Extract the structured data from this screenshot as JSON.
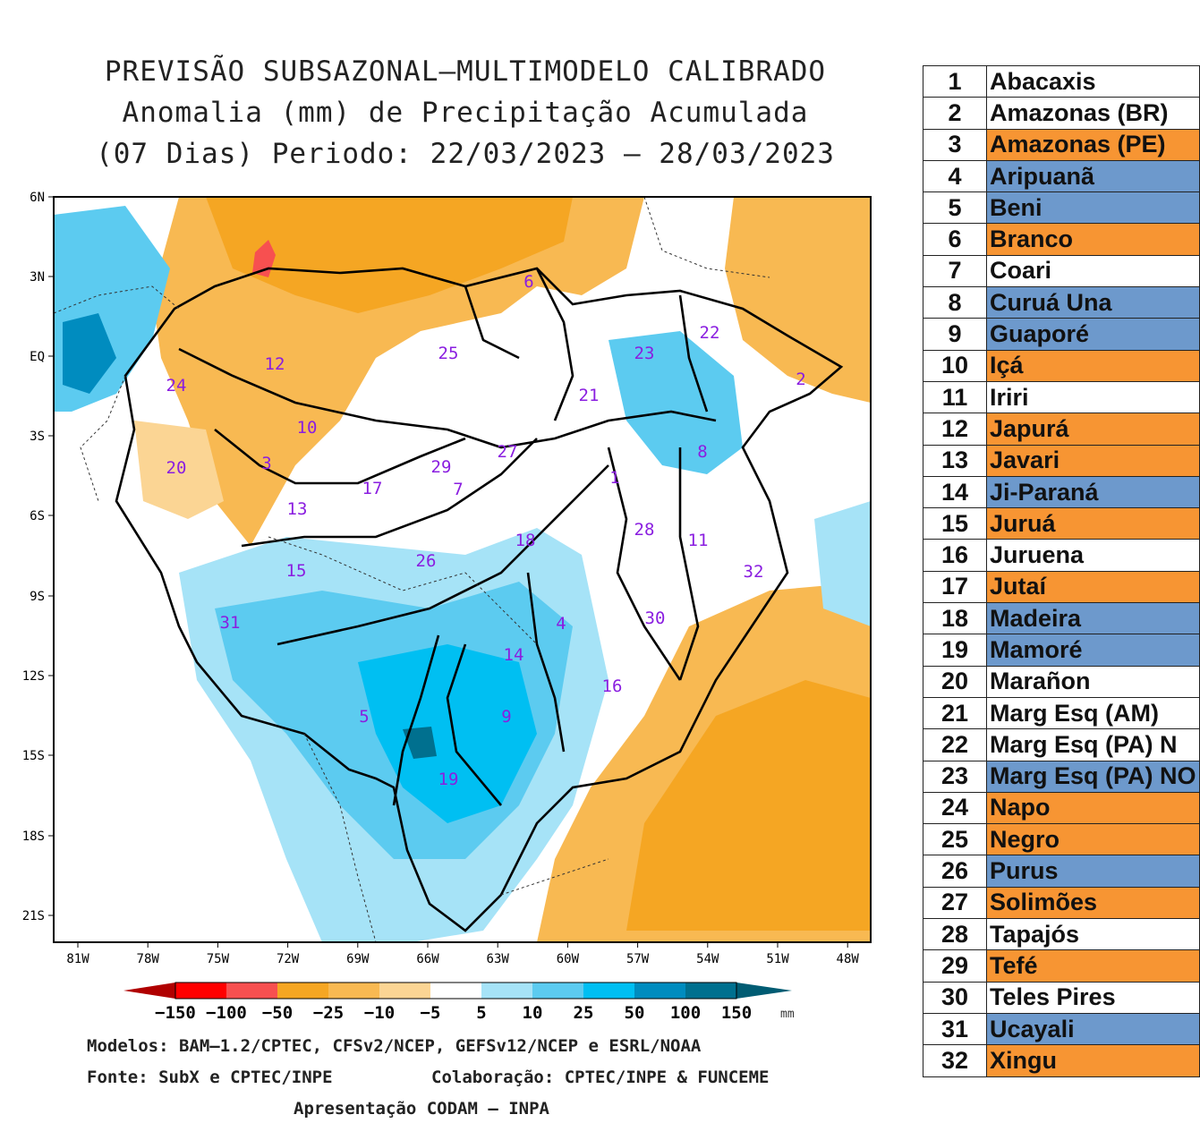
{
  "title": {
    "line1": "PREVISÃO SUBSAZONAL—MULTIMODELO CALIBRADO",
    "line2": "Anomalia (mm) de Precipitação Acumulada",
    "line3": "(07 Dias) Periodo: 22/03/2023 — 28/03/2023"
  },
  "colors": {
    "dry_strong": "#d10000",
    "dry_red": "#ff2020",
    "dry_light_red": "#f75050",
    "orange": "#f5a623",
    "light_orange": "#f8b952",
    "pale_orange": "#fbd594",
    "white": "#ffffff",
    "pale_blue": "#a6e3f7",
    "light_blue": "#5ccbf0",
    "blue": "#00bff2",
    "mid_blue": "#008cbf",
    "dark_blue": "#00708f",
    "deep_blue": "#005c73",
    "table_orange": "#f79533",
    "table_blue": "#6d99cc"
  },
  "map": {
    "lat_labels": [
      "6N",
      "3N",
      "EQ",
      "3S",
      "6S",
      "9S",
      "12S",
      "15S",
      "18S",
      "21S"
    ],
    "lon_labels": [
      "81W",
      "78W",
      "75W",
      "72W",
      "69W",
      "66W",
      "63W",
      "60W",
      "57W",
      "54W",
      "51W",
      "48W"
    ],
    "basin_numbers": [
      {
        "n": "1"
      },
      {
        "n": "2"
      },
      {
        "n": "3"
      },
      {
        "n": "4"
      },
      {
        "n": "5"
      },
      {
        "n": "6"
      },
      {
        "n": "7"
      },
      {
        "n": "8"
      },
      {
        "n": "9"
      },
      {
        "n": "10"
      },
      {
        "n": "11"
      },
      {
        "n": "12"
      },
      {
        "n": "13"
      },
      {
        "n": "14"
      },
      {
        "n": "15"
      },
      {
        "n": "16"
      },
      {
        "n": "17"
      },
      {
        "n": "18"
      },
      {
        "n": "19"
      },
      {
        "n": "20"
      },
      {
        "n": "21"
      },
      {
        "n": "22"
      },
      {
        "n": "23"
      },
      {
        "n": "24"
      },
      {
        "n": "25"
      },
      {
        "n": "26"
      },
      {
        "n": "27"
      },
      {
        "n": "28"
      },
      {
        "n": "29"
      },
      {
        "n": "30"
      },
      {
        "n": "31"
      },
      {
        "n": "32"
      }
    ]
  },
  "colorbar": {
    "labels": [
      "−150",
      "−100",
      "−50",
      "−25",
      "−10",
      "−5",
      "5",
      "10",
      "25",
      "50",
      "100",
      "150"
    ],
    "unit": "mm"
  },
  "footer": {
    "models": "Modelos: BAM—1.2/CPTEC, CFSv2/NCEP, GEFSv12/NCEP e ESRL/NOAA",
    "source": "Fonte: SubX e CPTEC/INPE",
    "collab": "Colaboração: CPTEC/INPE & FUNCEME",
    "presentation": "Apresentação CODAM — INPA"
  },
  "table": [
    {
      "n": "1",
      "name": "Abacaxis",
      "cat": "white"
    },
    {
      "n": "2",
      "name": "Amazonas (BR)",
      "cat": "white"
    },
    {
      "n": "3",
      "name": "Amazonas (PE)",
      "cat": "orange"
    },
    {
      "n": "4",
      "name": "Aripuanã",
      "cat": "blue"
    },
    {
      "n": "5",
      "name": "Beni",
      "cat": "blue"
    },
    {
      "n": "6",
      "name": "Branco",
      "cat": "orange"
    },
    {
      "n": "7",
      "name": "Coari",
      "cat": "white"
    },
    {
      "n": "8",
      "name": "Curuá Una",
      "cat": "blue"
    },
    {
      "n": "9",
      "name": "Guaporé",
      "cat": "blue"
    },
    {
      "n": "10",
      "name": "Içá",
      "cat": "orange"
    },
    {
      "n": "11",
      "name": "Iriri",
      "cat": "white"
    },
    {
      "n": "12",
      "name": "Japurá",
      "cat": "orange"
    },
    {
      "n": "13",
      "name": "Javari",
      "cat": "orange"
    },
    {
      "n": "14",
      "name": "Ji-Paraná",
      "cat": "blue"
    },
    {
      "n": "15",
      "name": "Juruá",
      "cat": "orange"
    },
    {
      "n": "16",
      "name": "Juruena",
      "cat": "white"
    },
    {
      "n": "17",
      "name": "Jutaí",
      "cat": "orange"
    },
    {
      "n": "18",
      "name": "Madeira",
      "cat": "blue"
    },
    {
      "n": "19",
      "name": "Mamoré",
      "cat": "blue"
    },
    {
      "n": "20",
      "name": "Marañon",
      "cat": "white"
    },
    {
      "n": "21",
      "name": "Marg Esq (AM)",
      "cat": "white"
    },
    {
      "n": "22",
      "name": "Marg Esq (PA) N",
      "cat": "white"
    },
    {
      "n": "23",
      "name": "Marg Esq (PA) NO",
      "cat": "blue"
    },
    {
      "n": "24",
      "name": "Napo",
      "cat": "orange"
    },
    {
      "n": "25",
      "name": "Negro",
      "cat": "orange"
    },
    {
      "n": "26",
      "name": "Purus",
      "cat": "blue"
    },
    {
      "n": "27",
      "name": "Solimões",
      "cat": "orange"
    },
    {
      "n": "28",
      "name": "Tapajós",
      "cat": "white"
    },
    {
      "n": "29",
      "name": "Tefé",
      "cat": "orange"
    },
    {
      "n": "30",
      "name": "Teles Pires",
      "cat": "white"
    },
    {
      "n": "31",
      "name": "Ucayali",
      "cat": "blue"
    },
    {
      "n": "32",
      "name": "Xingu",
      "cat": "orange"
    }
  ]
}
